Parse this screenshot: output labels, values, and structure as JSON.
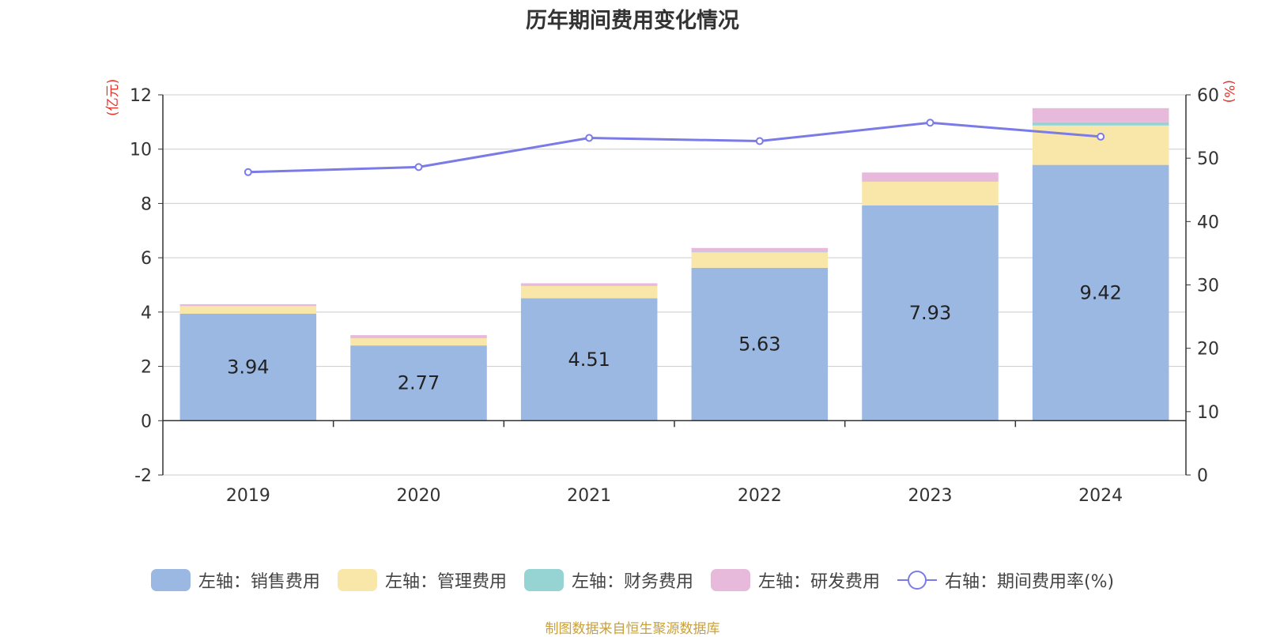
{
  "chart_data": {
    "type": "bar",
    "title": "历年期间费用变化情况",
    "categories": [
      "2019",
      "2020",
      "2021",
      "2022",
      "2023",
      "2024"
    ],
    "left_unit": "(亿元)",
    "right_unit": "(%)",
    "ylim_left": [
      -2,
      12
    ],
    "yticks_left": [
      -2,
      0,
      2,
      4,
      6,
      8,
      10,
      12
    ],
    "ylim_right": [
      0,
      60
    ],
    "yticks_right": [
      0,
      10,
      20,
      30,
      40,
      50,
      60
    ],
    "stacked": true,
    "series": [
      {
        "name": "左轴：销售费用",
        "axis": "left",
        "type": "bar",
        "color": "#9bb8e2",
        "values": [
          3.94,
          2.77,
          4.51,
          5.63,
          7.93,
          9.42
        ],
        "labels": true
      },
      {
        "name": "左轴：管理费用",
        "axis": "left",
        "type": "bar",
        "color": "#f8e7a9",
        "values": [
          0.28,
          0.27,
          0.45,
          0.57,
          0.87,
          1.45
        ]
      },
      {
        "name": "左轴：财务费用",
        "axis": "left",
        "type": "bar",
        "color": "#96d4d4",
        "values": [
          0.01,
          0.01,
          0.02,
          0.02,
          0.02,
          0.12
        ]
      },
      {
        "name": "左轴：研发费用",
        "axis": "left",
        "type": "bar",
        "color": "#e7b9db",
        "values": [
          0.06,
          0.1,
          0.08,
          0.14,
          0.32,
          0.52
        ]
      },
      {
        "name": "右轴：期间费用率(%)",
        "axis": "right",
        "type": "line",
        "color": "#7b7be8",
        "values": [
          47.8,
          48.6,
          53.2,
          52.7,
          55.6,
          53.4
        ]
      }
    ],
    "grid": true,
    "legend_position": "bottom"
  },
  "colors": {
    "unit_label": "#e8332a",
    "source_text": "#c9a03a",
    "axis": "#333333",
    "grid": "#cccccc"
  },
  "source": "制图数据来自恒生聚源数据库"
}
